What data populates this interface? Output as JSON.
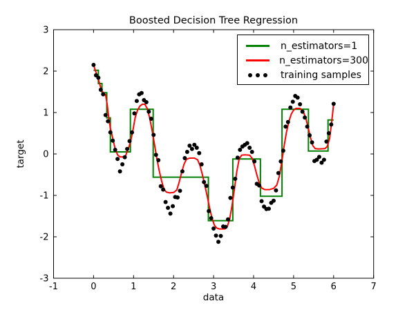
{
  "chart_data": {
    "type": "line+scatter",
    "title": "Boosted Decision Tree Regression",
    "xlabel": "data",
    "ylabel": "target",
    "xlim": [
      -1,
      7
    ],
    "ylim": [
      -3,
      3
    ],
    "xtick_values": [
      -1,
      0,
      1,
      2,
      3,
      4,
      5,
      6,
      7
    ],
    "xtick_labels": [
      "-1",
      "0",
      "1",
      "2",
      "3",
      "4",
      "5",
      "6",
      "7"
    ],
    "ytick_values": [
      -3,
      -2,
      -1,
      0,
      1,
      2,
      3
    ],
    "ytick_labels": [
      "-3",
      "-2",
      "-1",
      "0",
      "1",
      "2",
      "3"
    ],
    "grid": false,
    "legend_position": "upper right",
    "frame_color": "#000000",
    "background_color": "#ffffff",
    "line_width": 2,
    "marker_size": 6,
    "series": [
      {
        "name": "n_estimators=1",
        "type": "step",
        "color": "#008000",
        "segments": [
          [
            0.0,
            0.12,
            2.02
          ],
          [
            0.12,
            0.21,
            1.7
          ],
          [
            0.21,
            0.33,
            1.48
          ],
          [
            0.33,
            0.42,
            0.87
          ],
          [
            0.42,
            0.92,
            0.05
          ],
          [
            0.92,
            1.49,
            1.08
          ],
          [
            1.49,
            2.87,
            -0.56
          ],
          [
            2.87,
            3.48,
            -1.61
          ],
          [
            3.48,
            4.17,
            -0.12
          ],
          [
            4.17,
            4.71,
            -1.02
          ],
          [
            4.71,
            5.37,
            1.08
          ],
          [
            5.37,
            5.86,
            0.07
          ],
          [
            5.86,
            6.0,
            0.82
          ]
        ]
      },
      {
        "name": "n_estimators=300",
        "type": "line",
        "color": "#ff0000",
        "points": [
          [
            0.0,
            2.15
          ],
          [
            0.05,
            2.0
          ],
          [
            0.1,
            1.88
          ],
          [
            0.15,
            1.7
          ],
          [
            0.2,
            1.53
          ],
          [
            0.25,
            1.47
          ],
          [
            0.3,
            1.43
          ],
          [
            0.34,
            1.2
          ],
          [
            0.38,
            0.88
          ],
          [
            0.42,
            0.62
          ],
          [
            0.48,
            0.38
          ],
          [
            0.54,
            0.12
          ],
          [
            0.6,
            -0.02
          ],
          [
            0.66,
            -0.07
          ],
          [
            0.74,
            -0.07
          ],
          [
            0.8,
            -0.04
          ],
          [
            0.86,
            0.1
          ],
          [
            0.92,
            0.28
          ],
          [
            0.98,
            0.55
          ],
          [
            1.04,
            0.88
          ],
          [
            1.1,
            1.06
          ],
          [
            1.16,
            1.16
          ],
          [
            1.22,
            1.2
          ],
          [
            1.28,
            1.2
          ],
          [
            1.34,
            1.1
          ],
          [
            1.4,
            0.88
          ],
          [
            1.46,
            0.58
          ],
          [
            1.52,
            0.25
          ],
          [
            1.58,
            -0.1
          ],
          [
            1.64,
            -0.4
          ],
          [
            1.7,
            -0.65
          ],
          [
            1.76,
            -0.85
          ],
          [
            1.82,
            -0.92
          ],
          [
            1.9,
            -0.94
          ],
          [
            2.0,
            -0.93
          ],
          [
            2.08,
            -0.87
          ],
          [
            2.14,
            -0.68
          ],
          [
            2.2,
            -0.45
          ],
          [
            2.26,
            -0.25
          ],
          [
            2.32,
            -0.13
          ],
          [
            2.4,
            -0.1
          ],
          [
            2.52,
            -0.1
          ],
          [
            2.6,
            -0.14
          ],
          [
            2.66,
            -0.28
          ],
          [
            2.72,
            -0.5
          ],
          [
            2.78,
            -0.75
          ],
          [
            2.84,
            -1.02
          ],
          [
            2.9,
            -1.3
          ],
          [
            2.96,
            -1.55
          ],
          [
            3.02,
            -1.72
          ],
          [
            3.08,
            -1.79
          ],
          [
            3.14,
            -1.81
          ],
          [
            3.28,
            -1.81
          ],
          [
            3.34,
            -1.76
          ],
          [
            3.4,
            -1.58
          ],
          [
            3.46,
            -1.25
          ],
          [
            3.52,
            -0.85
          ],
          [
            3.58,
            -0.42
          ],
          [
            3.64,
            -0.12
          ],
          [
            3.7,
            -0.03
          ],
          [
            3.78,
            -0.02
          ],
          [
            3.9,
            -0.03
          ],
          [
            3.96,
            -0.1
          ],
          [
            4.02,
            -0.28
          ],
          [
            4.08,
            -0.5
          ],
          [
            4.14,
            -0.7
          ],
          [
            4.2,
            -0.82
          ],
          [
            4.28,
            -0.86
          ],
          [
            4.4,
            -0.86
          ],
          [
            4.5,
            -0.83
          ],
          [
            4.58,
            -0.75
          ],
          [
            4.64,
            -0.55
          ],
          [
            4.7,
            -0.22
          ],
          [
            4.76,
            0.18
          ],
          [
            4.82,
            0.52
          ],
          [
            4.88,
            0.78
          ],
          [
            4.94,
            0.96
          ],
          [
            5.0,
            1.06
          ],
          [
            5.06,
            1.1
          ],
          [
            5.16,
            1.1
          ],
          [
            5.24,
            1.02
          ],
          [
            5.3,
            0.88
          ],
          [
            5.36,
            0.65
          ],
          [
            5.42,
            0.4
          ],
          [
            5.48,
            0.2
          ],
          [
            5.54,
            0.13
          ],
          [
            5.62,
            0.12
          ],
          [
            5.78,
            0.13
          ],
          [
            5.84,
            0.18
          ],
          [
            5.9,
            0.38
          ],
          [
            5.94,
            0.68
          ],
          [
            5.98,
            1.02
          ],
          [
            6.0,
            1.21
          ]
        ]
      },
      {
        "name": "training samples",
        "type": "scatter",
        "color": "#000000",
        "points": [
          [
            0.0,
            2.15
          ],
          [
            0.06,
            1.9
          ],
          [
            0.12,
            1.84
          ],
          [
            0.18,
            1.55
          ],
          [
            0.24,
            1.44
          ],
          [
            0.3,
            0.94
          ],
          [
            0.36,
            0.79
          ],
          [
            0.42,
            0.52
          ],
          [
            0.48,
            0.32
          ],
          [
            0.54,
            0.1
          ],
          [
            0.6,
            -0.12
          ],
          [
            0.66,
            -0.42
          ],
          [
            0.72,
            -0.25
          ],
          [
            0.78,
            -0.08
          ],
          [
            0.84,
            0.12
          ],
          [
            0.9,
            0.31
          ],
          [
            0.96,
            0.52
          ],
          [
            1.02,
            0.98
          ],
          [
            1.08,
            1.28
          ],
          [
            1.14,
            1.44
          ],
          [
            1.2,
            1.47
          ],
          [
            1.26,
            1.3
          ],
          [
            1.32,
            1.25
          ],
          [
            1.38,
            1.02
          ],
          [
            1.44,
            0.85
          ],
          [
            1.5,
            0.46
          ],
          [
            1.56,
            -0.02
          ],
          [
            1.62,
            -0.15
          ],
          [
            1.68,
            -0.78
          ],
          [
            1.74,
            -0.86
          ],
          [
            1.8,
            -1.16
          ],
          [
            1.86,
            -1.3
          ],
          [
            1.92,
            -1.44
          ],
          [
            1.98,
            -1.26
          ],
          [
            2.04,
            -1.04
          ],
          [
            2.1,
            -1.05
          ],
          [
            2.16,
            -0.89
          ],
          [
            2.22,
            -0.42
          ],
          [
            2.28,
            -0.1
          ],
          [
            2.34,
            0.05
          ],
          [
            2.4,
            0.2
          ],
          [
            2.46,
            0.12
          ],
          [
            2.52,
            0.22
          ],
          [
            2.58,
            0.15
          ],
          [
            2.64,
            0.02
          ],
          [
            2.7,
            -0.25
          ],
          [
            2.76,
            -0.68
          ],
          [
            2.82,
            -0.77
          ],
          [
            2.88,
            -1.38
          ],
          [
            2.94,
            -1.55
          ],
          [
            3.0,
            -1.8
          ],
          [
            3.06,
            -1.97
          ],
          [
            3.12,
            -2.12
          ],
          [
            3.18,
            -1.98
          ],
          [
            3.24,
            -1.75
          ],
          [
            3.3,
            -1.76
          ],
          [
            3.36,
            -1.58
          ],
          [
            3.42,
            -1.06
          ],
          [
            3.48,
            -0.81
          ],
          [
            3.54,
            -0.6
          ],
          [
            3.6,
            -0.09
          ],
          [
            3.66,
            0.1
          ],
          [
            3.72,
            0.18
          ],
          [
            3.78,
            0.22
          ],
          [
            3.84,
            0.26
          ],
          [
            3.9,
            0.15
          ],
          [
            3.96,
            0.05
          ],
          [
            4.02,
            -0.18
          ],
          [
            4.08,
            -0.72
          ],
          [
            4.14,
            -0.76
          ],
          [
            4.2,
            -1.14
          ],
          [
            4.26,
            -1.27
          ],
          [
            4.32,
            -1.33
          ],
          [
            4.38,
            -1.32
          ],
          [
            4.44,
            -1.18
          ],
          [
            4.5,
            -1.13
          ],
          [
            4.56,
            -0.88
          ],
          [
            4.62,
            -0.46
          ],
          [
            4.68,
            -0.18
          ],
          [
            4.74,
            0.08
          ],
          [
            4.8,
            0.66
          ],
          [
            4.86,
            0.77
          ],
          [
            4.92,
            1.12
          ],
          [
            4.98,
            1.26
          ],
          [
            5.04,
            1.4
          ],
          [
            5.1,
            1.36
          ],
          [
            5.16,
            1.2
          ],
          [
            5.22,
            1.02
          ],
          [
            5.28,
            0.88
          ],
          [
            5.34,
            0.66
          ],
          [
            5.4,
            0.45
          ],
          [
            5.46,
            0.28
          ],
          [
            5.52,
            -0.17
          ],
          [
            5.58,
            -0.14
          ],
          [
            5.64,
            -0.07
          ],
          [
            5.7,
            -0.21
          ],
          [
            5.76,
            -0.14
          ],
          [
            5.82,
            0.3
          ],
          [
            5.88,
            0.5
          ],
          [
            5.94,
            0.71
          ],
          [
            6.0,
            1.21
          ]
        ]
      }
    ]
  }
}
